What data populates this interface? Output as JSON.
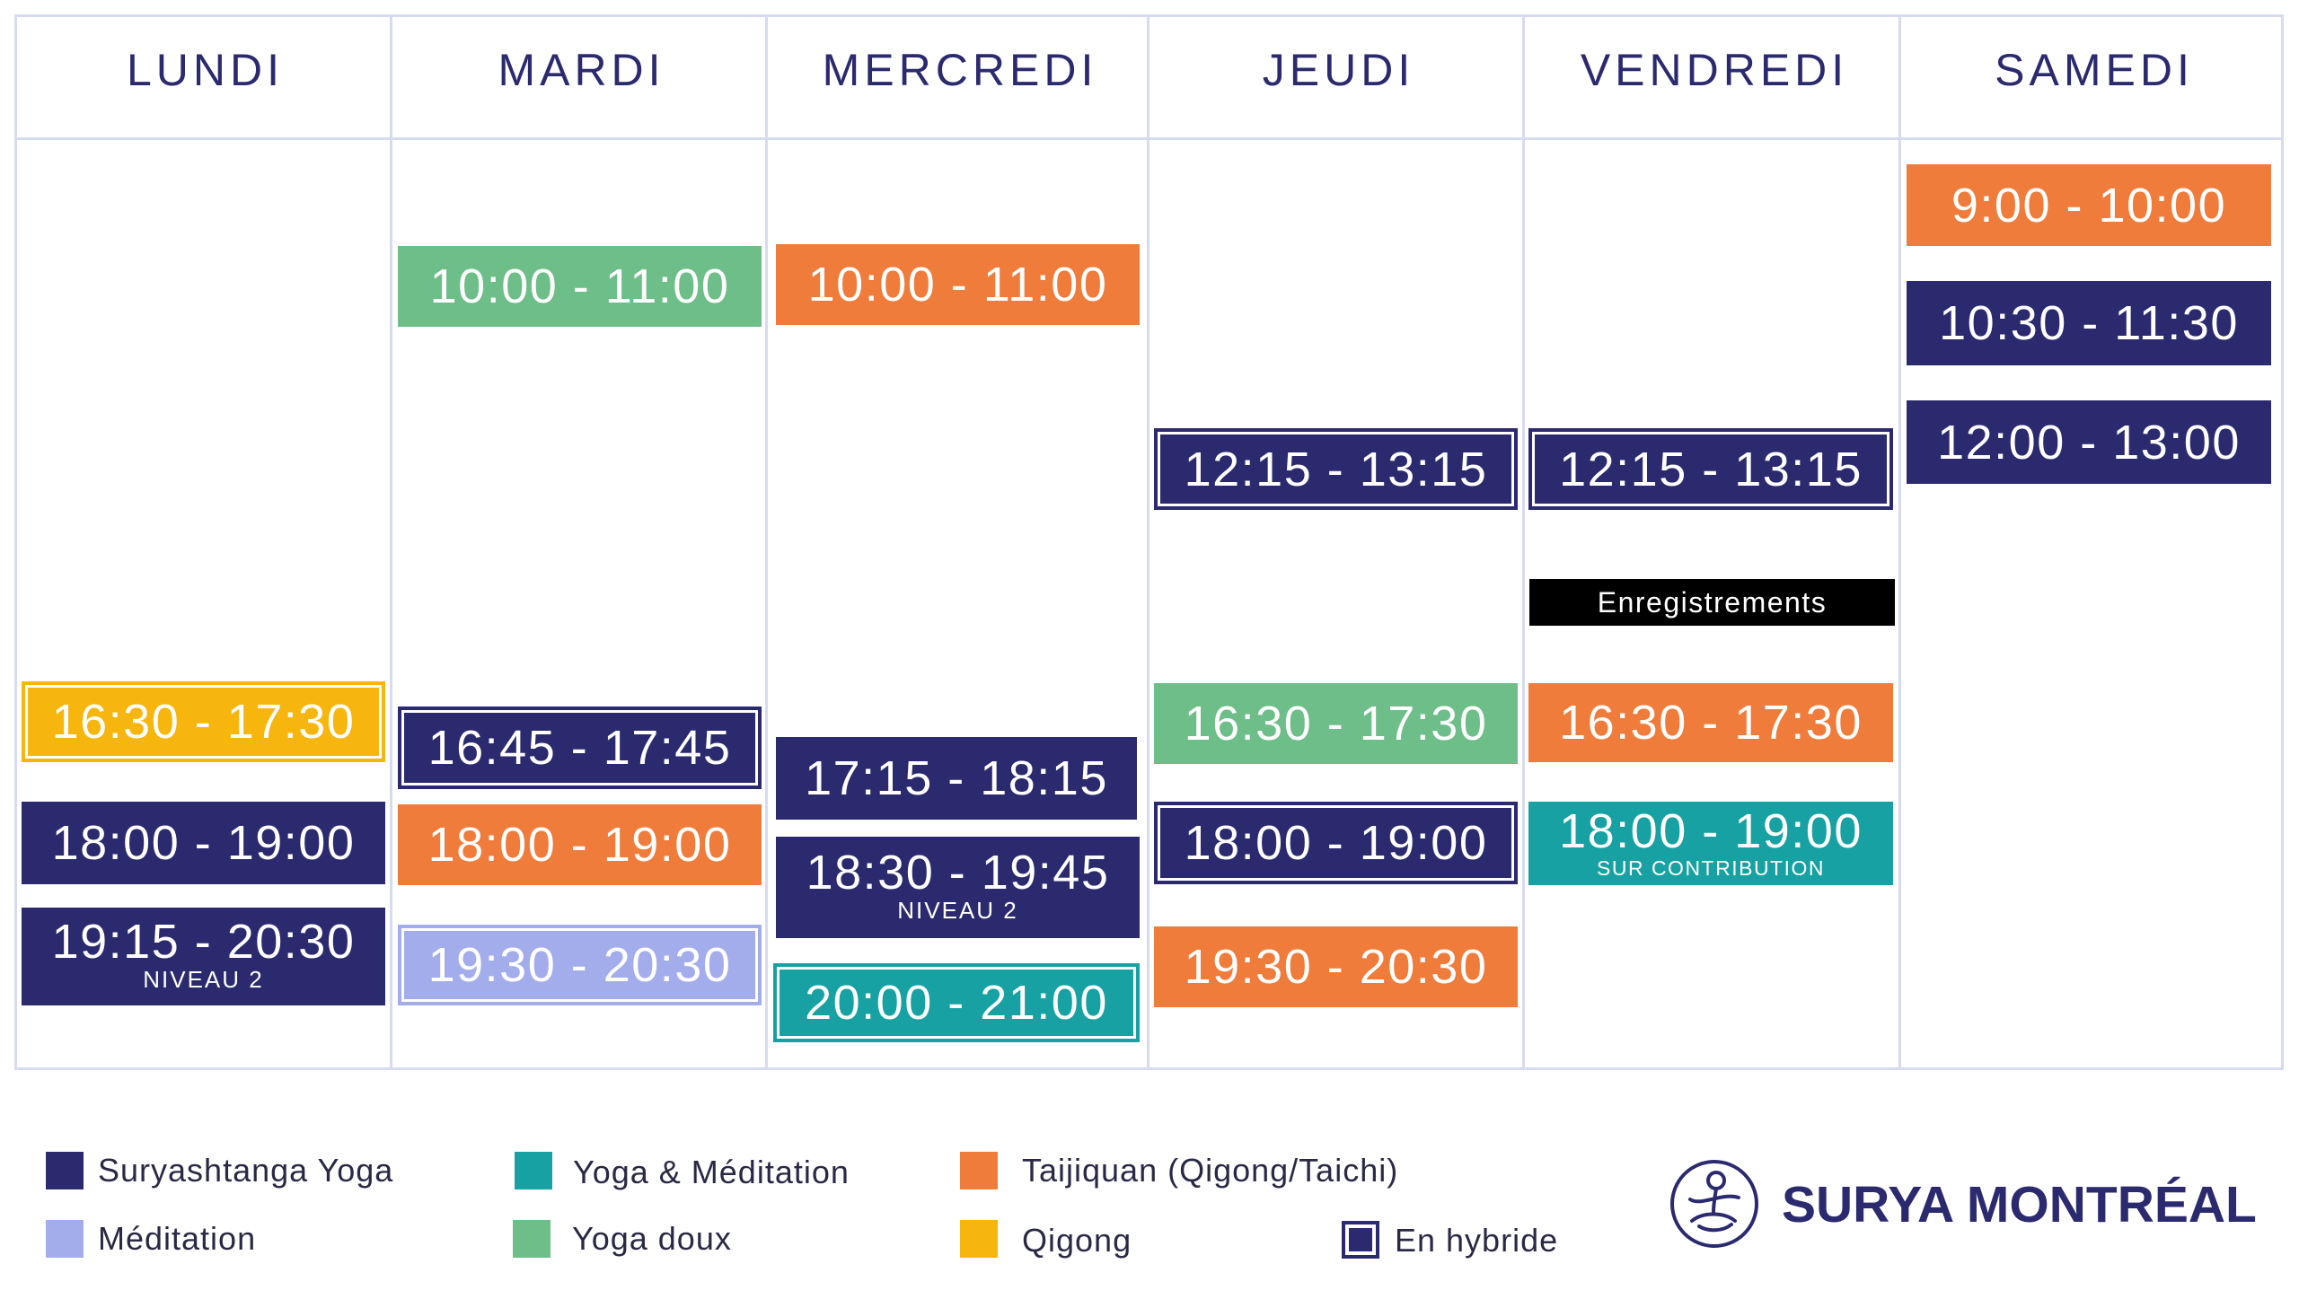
{
  "days": [
    {
      "name": "LUNDI",
      "events": [
        {
          "time": "16:30 - 17:30",
          "color": "#F6B60E",
          "hybrid": true
        },
        {
          "time": "18:00 - 19:00",
          "color": "#2B2A6F",
          "hybrid": false
        },
        {
          "time": "19:15 - 20:30",
          "color": "#2B2A6F",
          "hybrid": false,
          "note": "NIVEAU 2"
        }
      ]
    },
    {
      "name": "MARDI",
      "events": [
        {
          "time": "10:00 - 11:00",
          "color": "#6DBE88",
          "hybrid": false
        },
        {
          "time": "16:45 - 17:45",
          "color": "#2B2A6F",
          "hybrid": true
        },
        {
          "time": "18:00 - 19:00",
          "color": "#EF7C3B",
          "hybrid": false
        },
        {
          "time": "19:30 - 20:30",
          "color": "#A3ADEB",
          "hybrid": true
        }
      ]
    },
    {
      "name": "MERCREDI",
      "events": [
        {
          "time": "10:00 - 11:00",
          "color": "#EF7C3B",
          "hybrid": false
        },
        {
          "time": "17:15 - 18:15",
          "color": "#2B2A6F",
          "hybrid": false
        },
        {
          "time": "18:30 - 19:45",
          "color": "#2B2A6F",
          "hybrid": false,
          "note": "NIVEAU 2"
        },
        {
          "time": "20:00 - 21:00",
          "color": "#17A1A3",
          "hybrid": true
        }
      ]
    },
    {
      "name": "JEUDI",
      "events": [
        {
          "time": "12:15 - 13:15",
          "color": "#2B2A6F",
          "hybrid": true
        },
        {
          "time": "16:30 - 17:30",
          "color": "#6DBE88",
          "hybrid": false
        },
        {
          "time": "18:00 - 19:00",
          "color": "#2B2A6F",
          "hybrid": true
        },
        {
          "time": "19:30 - 20:30",
          "color": "#EF7C3B",
          "hybrid": false
        }
      ]
    },
    {
      "name": "VENDREDI",
      "events": [
        {
          "time": "12:15 - 13:15",
          "color": "#2B2A6F",
          "hybrid": true
        },
        {
          "label": "Enregistrements",
          "color": "#000000",
          "hybrid": false
        },
        {
          "time": "16:30 - 17:30",
          "color": "#EF7C3B",
          "hybrid": false
        },
        {
          "time": "18:00 - 19:00",
          "color": "#17A1A3",
          "hybrid": false,
          "note": "SUR CONTRIBUTION"
        }
      ]
    },
    {
      "name": "SAMEDI",
      "events": [
        {
          "time": "9:00 - 10:00",
          "color": "#EF7C3B",
          "hybrid": false
        },
        {
          "time": "10:30 - 11:30",
          "color": "#2B2A6F",
          "hybrid": false
        },
        {
          "time": "12:00 - 13:00",
          "color": "#2B2A6F",
          "hybrid": false
        }
      ]
    }
  ],
  "legend": [
    {
      "label": "Suryashtanga Yoga",
      "color": "#2B2A6F"
    },
    {
      "label": "Yoga & Méditation",
      "color": "#17A1A3"
    },
    {
      "label": "Taijiquan (Qigong/Taichi)",
      "color": "#EF7C3B"
    },
    {
      "label": "Méditation",
      "color": "#A3ADEB"
    },
    {
      "label": "Yoga doux",
      "color": "#6DBE88"
    },
    {
      "label": "Qigong",
      "color": "#F6B60E"
    },
    {
      "label": "En hybride",
      "color": "#2B2A6F",
      "hybrid": true
    }
  ],
  "brand": {
    "name": "SURYA MONTRÉAL",
    "logo_icon": "meditating-figure-icon",
    "color": "#2B2A6F"
  },
  "grid_line_color": "#D7DBEF"
}
